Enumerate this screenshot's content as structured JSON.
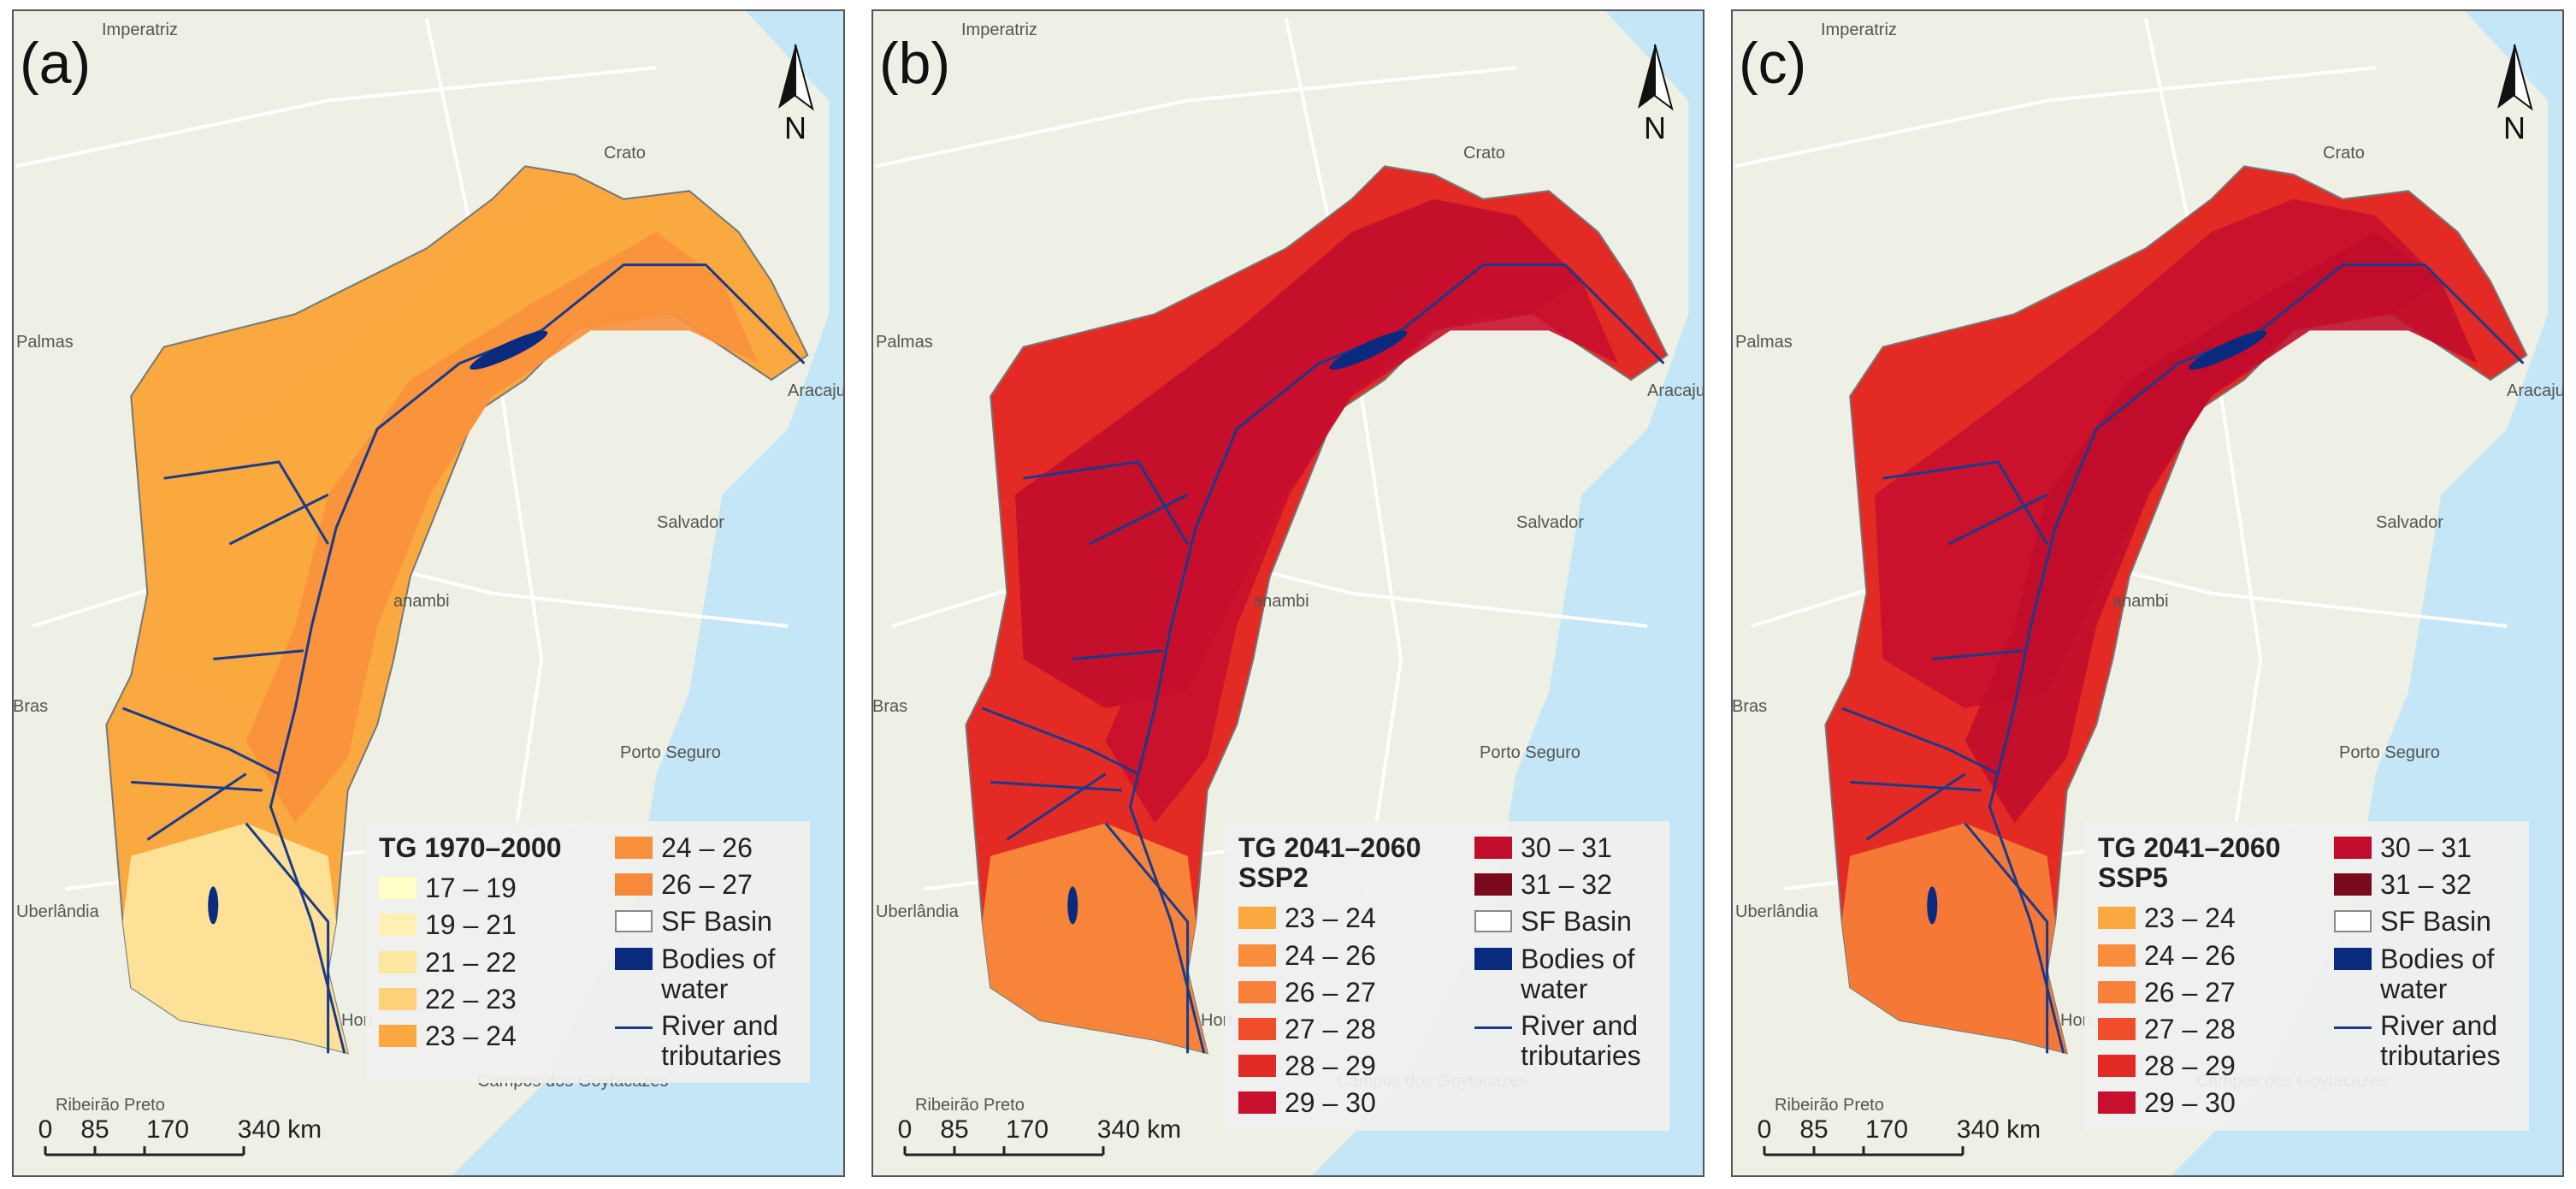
{
  "panels": [
    {
      "label": "(a)",
      "north": "N",
      "scale": [
        "0",
        "85",
        "170",
        "340 km"
      ],
      "legend": {
        "title": "TG 1970–2000",
        "columns": [
          [
            {
              "label": "17 – 19",
              "color": "#ffffc8"
            },
            {
              "label": "19 – 21",
              "color": "#fff0b4"
            },
            {
              "label": "21 – 22",
              "color": "#fde7a0"
            },
            {
              "label": "22 – 23",
              "color": "#fdd27a"
            },
            {
              "label": "23 – 24",
              "color": "#f9a93f"
            }
          ],
          [
            {
              "label": "24 – 26",
              "color": "#f8903c"
            },
            {
              "label": "26 – 27",
              "color": "#f7893b"
            },
            {
              "label": "SF Basin",
              "color": "#888888",
              "swatch": "outline"
            },
            {
              "label": "Bodies of water",
              "color": "#0a2a80"
            },
            {
              "label": "River and tributaries",
              "color": "#1a3a8a",
              "swatch": "line"
            }
          ]
        ]
      }
    },
    {
      "label": "(b)",
      "north": "N",
      "scale": [
        "0",
        "85",
        "170",
        "340 km"
      ],
      "legend": {
        "title": "TG 2041–2060 SSP2",
        "columns": [
          [
            {
              "label": "23 – 24",
              "color": "#f9a93f"
            },
            {
              "label": "24 – 26",
              "color": "#f88e3c"
            },
            {
              "label": "26 – 27",
              "color": "#f7813a"
            },
            {
              "label": "27 – 28",
              "color": "#f04e2b"
            },
            {
              "label": "28 – 29",
              "color": "#e42a24"
            },
            {
              "label": "29 – 30",
              "color": "#c8102e"
            }
          ],
          [
            {
              "label": "30 – 31",
              "color": "#c00d2b"
            },
            {
              "label": "31 – 32",
              "color": "#7b0a1e"
            },
            {
              "label": "SF Basin",
              "color": "#888888",
              "swatch": "outline"
            },
            {
              "label": "Bodies of water",
              "color": "#0a2a80"
            },
            {
              "label": "River and tributaries",
              "color": "#1a3a8a",
              "swatch": "line"
            }
          ]
        ]
      }
    },
    {
      "label": "(c)",
      "north": "N",
      "scale": [
        "0",
        "85",
        "170",
        "340 km"
      ],
      "legend": {
        "title": "TG 2041–2060 SSP5",
        "columns": [
          [
            {
              "label": "23 – 24",
              "color": "#f9a93f"
            },
            {
              "label": "24 – 26",
              "color": "#f88e3c"
            },
            {
              "label": "26 – 27",
              "color": "#f7813a"
            },
            {
              "label": "27 – 28",
              "color": "#f04e2b"
            },
            {
              "label": "28 – 29",
              "color": "#e42a24"
            },
            {
              "label": "29 – 30",
              "color": "#c8102e"
            }
          ],
          [
            {
              "label": "30 – 31",
              "color": "#c00d2b"
            },
            {
              "label": "31 – 32",
              "color": "#7b0a1e"
            },
            {
              "label": "SF Basin",
              "color": "#888888",
              "swatch": "outline"
            },
            {
              "label": "Bodies of water",
              "color": "#0a2a80"
            },
            {
              "label": "River and tributaries",
              "color": "#1a3a8a",
              "swatch": "line"
            }
          ]
        ]
      }
    }
  ],
  "places": [
    "Imperatriz",
    "Crato",
    "Palmas",
    "Aracaju",
    "Salvador",
    "anambi",
    "Bras",
    "Porto Seguro",
    "Uberlândia",
    "Hori",
    "Ribeirão Preto",
    "Campos dos Goytacazes"
  ]
}
